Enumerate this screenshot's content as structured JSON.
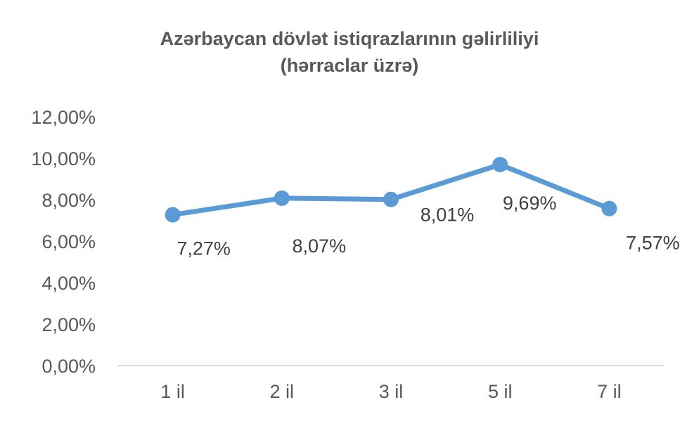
{
  "chart_data": {
    "type": "line",
    "title": "Azərbaycan dövlət istiqrazlarının gəlirliliyi",
    "subtitle": "(hərraclar üzrə)",
    "categories": [
      "1 il",
      "2 il",
      "3 il",
      "5 il",
      "7 il"
    ],
    "values": [
      7.27,
      8.07,
      8.01,
      9.69,
      7.57
    ],
    "data_labels": [
      "7,27%",
      "8,07%",
      "8,01%",
      "9,69%",
      "7,57%"
    ],
    "y_ticks": [
      "0,00%",
      "2,00%",
      "4,00%",
      "6,00%",
      "8,00%",
      "10,00%",
      "12,00%"
    ],
    "ylim": [
      0,
      12
    ],
    "xlabel": "",
    "ylabel": "",
    "grid": false,
    "legend": "none",
    "series_color": "#5B9BD5"
  }
}
